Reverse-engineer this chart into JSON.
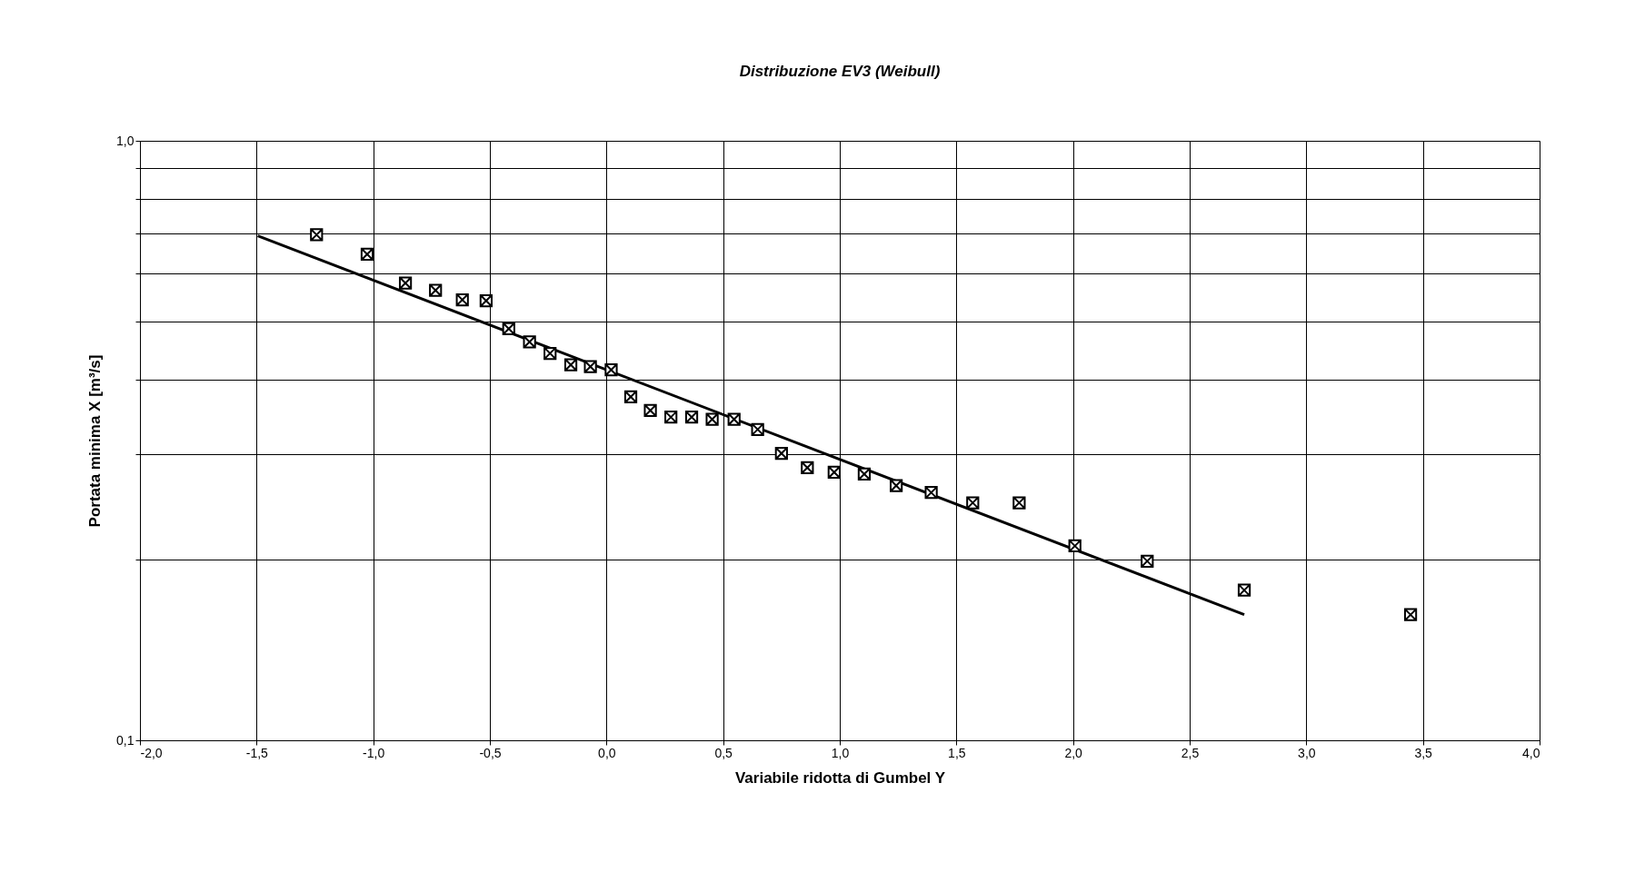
{
  "chart_data": {
    "type": "scatter",
    "title": "Distribuzione EV3 (Weibull)",
    "xlabel": "Variabile ridotta di Gumbel Y",
    "ylabel": "Portata minima X [m³/s]",
    "log": "y",
    "grid": true,
    "xlim": [
      -2.0,
      4.0
    ],
    "xticks": [
      {
        "value": -2.0,
        "label": "-2,0"
      },
      {
        "value": -1.5,
        "label": "-1,5"
      },
      {
        "value": -1.0,
        "label": "-1,0"
      },
      {
        "value": -0.5,
        "label": "-0,5"
      },
      {
        "value": 0.0,
        "label": "0,0"
      },
      {
        "value": 0.5,
        "label": "0,5"
      },
      {
        "value": 1.0,
        "label": "1,0"
      },
      {
        "value": 1.5,
        "label": "1,5"
      },
      {
        "value": 2.0,
        "label": "2,0"
      },
      {
        "value": 2.5,
        "label": "2,5"
      },
      {
        "value": 3.0,
        "label": "3,0"
      },
      {
        "value": 3.5,
        "label": "3,5"
      },
      {
        "value": 4.0,
        "label": "4,0"
      }
    ],
    "ylim": [
      0.1,
      1.0
    ],
    "yticks": [
      {
        "value": 0.1,
        "label": "0,1"
      },
      {
        "value": 0.2,
        "label": null
      },
      {
        "value": 0.3,
        "label": null
      },
      {
        "value": 0.4,
        "label": null
      },
      {
        "value": 0.5,
        "label": null
      },
      {
        "value": 0.6,
        "label": null
      },
      {
        "value": 0.7,
        "label": null
      },
      {
        "value": 0.8,
        "label": null
      },
      {
        "value": 0.9,
        "label": null
      },
      {
        "value": 1.0,
        "label": "1,0"
      }
    ],
    "series": [
      {
        "marker": "cross",
        "color": "#000000",
        "x": [
          -1.243,
          -1.026,
          -0.862,
          -0.733,
          -0.618,
          -0.516,
          -0.419,
          -0.33,
          -0.242,
          -0.153,
          -0.069,
          0.02,
          0.104,
          0.188,
          0.276,
          0.365,
          0.453,
          0.547,
          0.648,
          0.75,
          0.861,
          0.976,
          1.105,
          1.242,
          1.392,
          1.57,
          1.769,
          2.008,
          2.318,
          2.734,
          3.447
        ],
        "values": [
          0.697,
          0.647,
          0.579,
          0.563,
          0.543,
          0.541,
          0.486,
          0.462,
          0.442,
          0.423,
          0.42,
          0.415,
          0.374,
          0.355,
          0.346,
          0.346,
          0.343,
          0.343,
          0.33,
          0.301,
          0.285,
          0.28,
          0.278,
          0.266,
          0.259,
          0.249,
          0.249,
          0.211,
          0.199,
          0.178,
          0.162
        ]
      },
      {
        "type": "line",
        "marker": "none",
        "color": "#000000",
        "x": [
          -1.495,
          2.734
        ],
        "values": [
          0.694,
          0.162
        ]
      }
    ]
  }
}
